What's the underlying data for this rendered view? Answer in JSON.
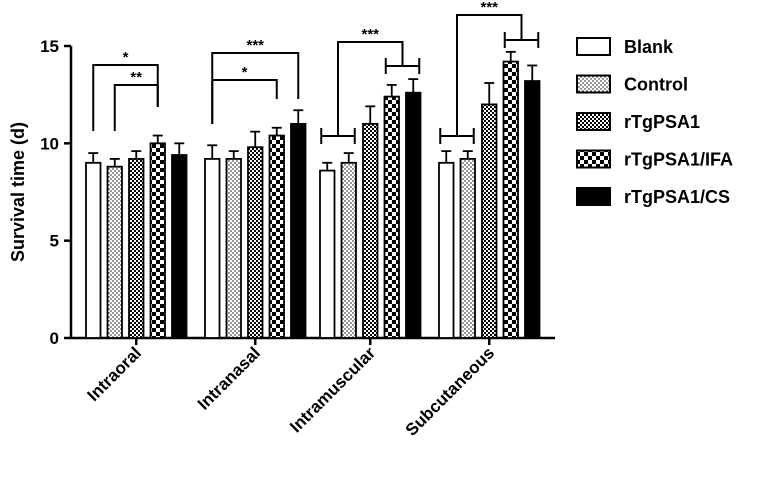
{
  "chart_data": {
    "type": "bar",
    "title": "",
    "xlabel": "",
    "ylabel": "Survival time (d)",
    "ylim": [
      0,
      15
    ],
    "yticks": [
      0,
      5,
      10,
      15
    ],
    "categories": [
      "Intraoral",
      "Intranasal",
      "Intramuscular",
      "Subcutaneous"
    ],
    "series": [
      {
        "name": "Blank",
        "pattern": "white",
        "values": [
          9.0,
          9.2,
          8.6,
          9.0
        ],
        "errors": [
          0.5,
          0.7,
          0.4,
          0.6
        ]
      },
      {
        "name": "Control",
        "pattern": "dots",
        "values": [
          8.8,
          9.2,
          9.0,
          9.2
        ],
        "errors": [
          0.4,
          0.4,
          0.5,
          0.4
        ]
      },
      {
        "name": "rTgPSA1",
        "pattern": "checker-fine",
        "values": [
          9.2,
          9.8,
          11.0,
          12.0
        ],
        "errors": [
          0.4,
          0.8,
          0.9,
          1.1
        ]
      },
      {
        "name": "rTgPSA1/IFA",
        "pattern": "checker-coarse",
        "values": [
          10.0,
          10.4,
          12.4,
          14.2
        ],
        "errors": [
          0.4,
          0.4,
          0.6,
          0.5
        ]
      },
      {
        "name": "rTgPSA1/CS",
        "pattern": "black",
        "values": [
          9.4,
          11.0,
          12.6,
          13.2
        ],
        "errors": [
          0.6,
          0.7,
          0.7,
          0.8
        ]
      }
    ],
    "legend_position": "right",
    "grid": false,
    "significance": [
      {
        "label": "*",
        "category": "Intraoral",
        "from": [
          0
        ],
        "to": [
          3
        ]
      },
      {
        "label": "**",
        "category": "Intraoral",
        "from": [
          1
        ],
        "to": [
          3
        ]
      },
      {
        "label": "***",
        "category": "Intranasal",
        "from": [
          0
        ],
        "to": [
          4
        ]
      },
      {
        "label": "*",
        "category": "Intranasal",
        "from": [
          0
        ],
        "to": [
          3
        ]
      },
      {
        "label": "***",
        "category": "Intramuscular",
        "from": [
          0,
          1
        ],
        "to": [
          3,
          4
        ]
      },
      {
        "label": "***",
        "category": "Subcutaneous",
        "from": [
          0,
          1
        ],
        "to": [
          3,
          4
        ]
      }
    ]
  }
}
